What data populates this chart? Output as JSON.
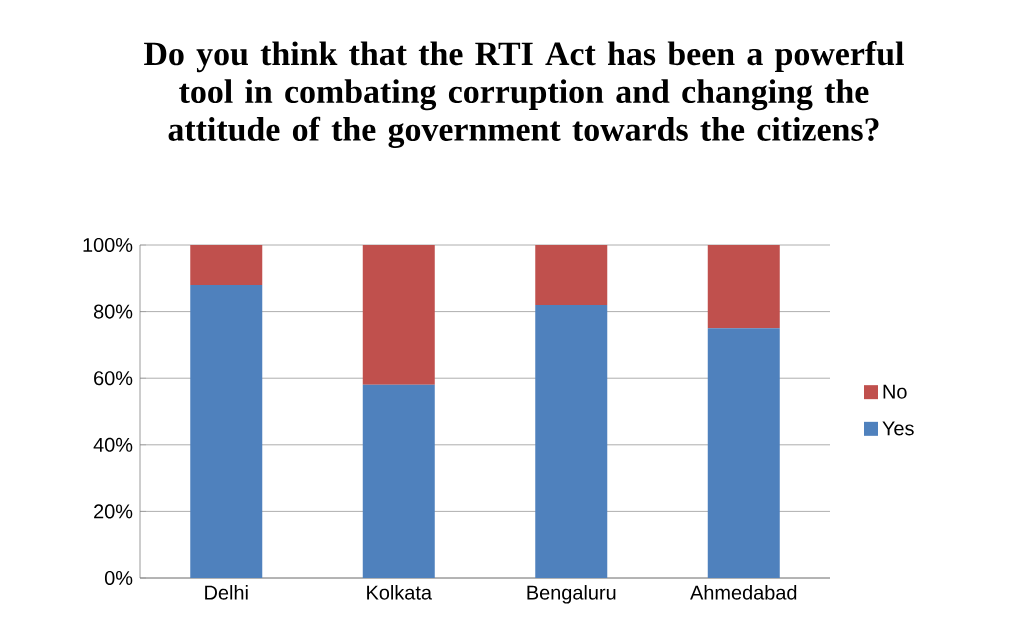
{
  "chart_data": {
    "type": "bar",
    "title": "Do you think that the RTI Act has been a powerful tool in combating corruption and changing the attitude of the government towards the citizens?",
    "categories": [
      "Delhi",
      "Kolkata",
      "Bengaluru",
      "Ahmedabad"
    ],
    "stacked": true,
    "series": [
      {
        "name": "Yes",
        "color": "#4f81bd",
        "values": [
          88,
          58,
          82,
          75
        ]
      },
      {
        "name": "No",
        "color": "#c0504d",
        "values": [
          12,
          42,
          18,
          25
        ]
      }
    ],
    "ylim": [
      0,
      100
    ],
    "yticks": [
      {
        "value": 0,
        "label": "0%"
      },
      {
        "value": 20,
        "label": "20%"
      },
      {
        "value": 40,
        "label": "40%"
      },
      {
        "value": 60,
        "label": "60%"
      },
      {
        "value": 80,
        "label": "80%"
      },
      {
        "value": 100,
        "label": "100%"
      }
    ],
    "grid": "y",
    "legend": "right"
  }
}
